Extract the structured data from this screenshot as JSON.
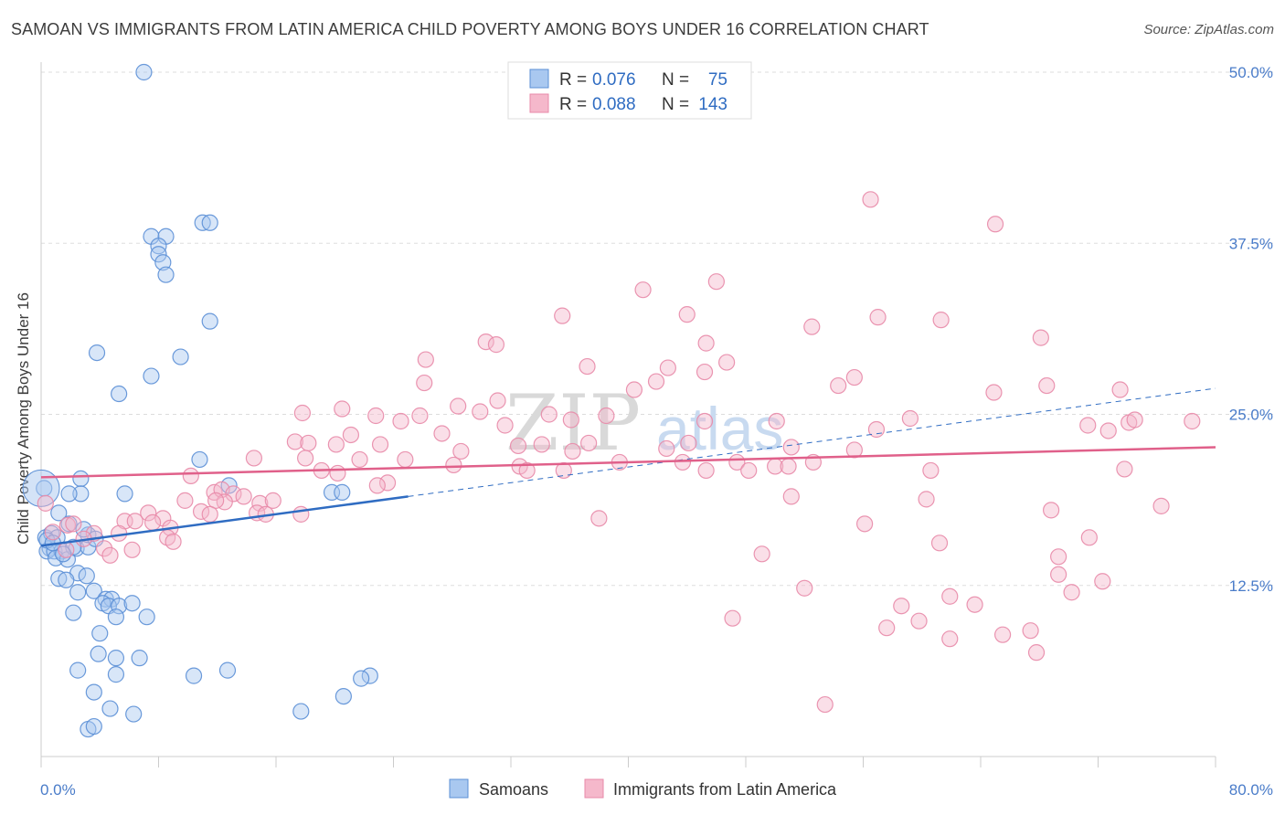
{
  "title": "SAMOAN VS IMMIGRANTS FROM LATIN AMERICA CHILD POVERTY AMONG BOYS UNDER 16 CORRELATION CHART",
  "source": "Source: ZipAtlas.com",
  "watermark": {
    "zip": "ZIP",
    "atlas": "atlas"
  },
  "colors": {
    "samoan_fill": "#a9c8f0",
    "samoan_stroke": "#5b8fd6",
    "samoan_line": "#2f6cc2",
    "latin_fill": "#f5b8cb",
    "latin_stroke": "#e88aa8",
    "latin_line": "#e0608a",
    "grid": "#dddddd",
    "tick_text": "#4a7cc9"
  },
  "legend": {
    "rows": [
      {
        "r_label": "R =",
        "r_value": "0.076",
        "n_label": "N =",
        "n_value": "75"
      },
      {
        "r_label": "R =",
        "r_value": "0.088",
        "n_label": "N =",
        "n_value": "143"
      }
    ]
  },
  "chart_data": {
    "type": "scatter",
    "ylabel": "Child Poverty Among Boys Under 16",
    "xlim": [
      0,
      80
    ],
    "ylim": [
      0,
      50
    ],
    "x_ticks": [
      "0.0%",
      "80.0%"
    ],
    "y_ticks": [
      {
        "value": 12.5,
        "label": "12.5%"
      },
      {
        "value": 25.0,
        "label": "25.0%"
      },
      {
        "value": 37.5,
        "label": "37.5%"
      },
      {
        "value": 50.0,
        "label": "50.0%"
      }
    ],
    "series": [
      {
        "name": "Samoans",
        "trend": {
          "x0": 0,
          "y0": 15.4,
          "x1": 25,
          "y1": 19.0,
          "dash_to_x": 80,
          "dash_to_y": 26.9
        },
        "points": [
          [
            7,
            50
          ],
          [
            7.5,
            38
          ],
          [
            8.5,
            38
          ],
          [
            8,
            37.3
          ],
          [
            8,
            36.7
          ],
          [
            8.3,
            36.1
          ],
          [
            8.5,
            35.2
          ],
          [
            11,
            39
          ],
          [
            11.5,
            39
          ],
          [
            11.5,
            31.8
          ],
          [
            3.8,
            29.5
          ],
          [
            7.5,
            27.8
          ],
          [
            9.5,
            29.2
          ],
          [
            5.3,
            26.5
          ],
          [
            10.8,
            21.7
          ],
          [
            12.8,
            19.8
          ],
          [
            2.7,
            20.3
          ],
          [
            2.7,
            19.2
          ],
          [
            1.9,
            19.2
          ],
          [
            5.7,
            19.2
          ],
          [
            19.8,
            19.3
          ],
          [
            20.5,
            19.3
          ],
          [
            1.2,
            17.8
          ],
          [
            1.9,
            17.0
          ],
          [
            0.6,
            15.2
          ],
          [
            0.4,
            15.0
          ],
          [
            0.9,
            15.0
          ],
          [
            1.4,
            15.0
          ],
          [
            2.4,
            15.2
          ],
          [
            3.2,
            15.3
          ],
          [
            1.0,
            14.5
          ],
          [
            1.8,
            14.4
          ],
          [
            2.5,
            13.4
          ],
          [
            3.1,
            13.2
          ],
          [
            1.2,
            13.0
          ],
          [
            1.7,
            12.9
          ],
          [
            2.5,
            12.0
          ],
          [
            3.6,
            12.1
          ],
          [
            4.4,
            11.5
          ],
          [
            4.8,
            11.5
          ],
          [
            4.2,
            11.2
          ],
          [
            4.6,
            11.0
          ],
          [
            5.3,
            11.0
          ],
          [
            6.2,
            11.2
          ],
          [
            2.2,
            10.5
          ],
          [
            5.1,
            10.2
          ],
          [
            7.2,
            10.2
          ],
          [
            4.0,
            9.0
          ],
          [
            3.9,
            7.5
          ],
          [
            5.1,
            7.2
          ],
          [
            6.7,
            7.2
          ],
          [
            2.5,
            6.3
          ],
          [
            5.1,
            6.0
          ],
          [
            10.4,
            5.9
          ],
          [
            12.7,
            6.3
          ],
          [
            22.4,
            5.9
          ],
          [
            21.8,
            5.7
          ],
          [
            3.6,
            4.7
          ],
          [
            4.7,
            3.5
          ],
          [
            6.3,
            3.1
          ],
          [
            17.7,
            3.3
          ],
          [
            20.6,
            4.4
          ],
          [
            3.2,
            2.0
          ],
          [
            3.6,
            2.2
          ],
          [
            0.2,
            19.6
          ],
          [
            0.3,
            16.0
          ],
          [
            0.7,
            16.3
          ],
          [
            1.1,
            16.0
          ],
          [
            0.4,
            15.8
          ],
          [
            3.2,
            16.2
          ],
          [
            2.2,
            15.3
          ],
          [
            1.5,
            14.8
          ],
          [
            0.8,
            15.6
          ],
          [
            2.9,
            16.6
          ],
          [
            3.7,
            15.9
          ]
        ]
      },
      {
        "name": "Immigrants from Latin America",
        "trend": {
          "x0": 0,
          "y0": 20.4,
          "x1": 80,
          "y1": 22.6
        },
        "points": [
          [
            56.5,
            40.7
          ],
          [
            65,
            38.9
          ],
          [
            46,
            34.7
          ],
          [
            41,
            34.1
          ],
          [
            35.5,
            32.2
          ],
          [
            44,
            32.3
          ],
          [
            52.5,
            31.4
          ],
          [
            57,
            32.1
          ],
          [
            61.3,
            31.9
          ],
          [
            68.1,
            30.6
          ],
          [
            30.3,
            30.3
          ],
          [
            31,
            30.1
          ],
          [
            45.3,
            30.2
          ],
          [
            26.2,
            29.0
          ],
          [
            46.7,
            28.8
          ],
          [
            37.2,
            28.5
          ],
          [
            42.7,
            28.4
          ],
          [
            45.2,
            28.1
          ],
          [
            55.4,
            27.7
          ],
          [
            41.9,
            27.4
          ],
          [
            26.1,
            27.3
          ],
          [
            54.3,
            27.1
          ],
          [
            40.4,
            26.8
          ],
          [
            64.9,
            26.6
          ],
          [
            68.5,
            27.1
          ],
          [
            73.5,
            26.8
          ],
          [
            31.1,
            26.0
          ],
          [
            28.4,
            25.6
          ],
          [
            29.9,
            25.2
          ],
          [
            17.8,
            25.1
          ],
          [
            25.8,
            24.9
          ],
          [
            20.5,
            25.4
          ],
          [
            22.8,
            24.9
          ],
          [
            24.5,
            24.5
          ],
          [
            34.6,
            25.0
          ],
          [
            38.5,
            24.9
          ],
          [
            36.1,
            24.6
          ],
          [
            31.6,
            24.2
          ],
          [
            45.2,
            24.5
          ],
          [
            50.1,
            24.5
          ],
          [
            59.2,
            24.7
          ],
          [
            71.3,
            24.2
          ],
          [
            74.1,
            24.4
          ],
          [
            74.5,
            24.6
          ],
          [
            78.4,
            24.5
          ],
          [
            72.7,
            23.8
          ],
          [
            56.9,
            23.9
          ],
          [
            27.3,
            23.6
          ],
          [
            21.1,
            23.5
          ],
          [
            17.3,
            23.0
          ],
          [
            20.1,
            22.8
          ],
          [
            23.1,
            22.8
          ],
          [
            18.2,
            22.9
          ],
          [
            32.5,
            22.7
          ],
          [
            34.1,
            22.8
          ],
          [
            37.3,
            22.9
          ],
          [
            44.1,
            22.9
          ],
          [
            51.1,
            22.6
          ],
          [
            55.4,
            22.4
          ],
          [
            36.2,
            22.3
          ],
          [
            42.6,
            22.5
          ],
          [
            28.6,
            22.3
          ],
          [
            14.5,
            21.8
          ],
          [
            18.0,
            21.8
          ],
          [
            21.7,
            21.7
          ],
          [
            24.8,
            21.7
          ],
          [
            39.4,
            21.5
          ],
          [
            43.7,
            21.5
          ],
          [
            47.4,
            21.5
          ],
          [
            50.0,
            21.2
          ],
          [
            50.9,
            21.2
          ],
          [
            52.6,
            21.5
          ],
          [
            28.1,
            21.3
          ],
          [
            32.6,
            21.2
          ],
          [
            33.1,
            20.9
          ],
          [
            35.6,
            20.9
          ],
          [
            45.3,
            20.9
          ],
          [
            48.2,
            20.9
          ],
          [
            60.6,
            20.9
          ],
          [
            73.8,
            21.0
          ],
          [
            19.1,
            20.9
          ],
          [
            20.2,
            20.7
          ],
          [
            23.6,
            20.0
          ],
          [
            22.9,
            19.8
          ],
          [
            10.2,
            20.5
          ],
          [
            11.8,
            19.3
          ],
          [
            12.3,
            19.5
          ],
          [
            13.1,
            19.2
          ],
          [
            13.8,
            19.0
          ],
          [
            12.5,
            18.6
          ],
          [
            9.8,
            18.7
          ],
          [
            11.9,
            18.7
          ],
          [
            14.9,
            18.5
          ],
          [
            15.8,
            18.7
          ],
          [
            14.7,
            17.8
          ],
          [
            10.9,
            17.9
          ],
          [
            11.5,
            17.7
          ],
          [
            7.3,
            17.8
          ],
          [
            8.3,
            17.4
          ],
          [
            5.7,
            17.2
          ],
          [
            15.3,
            17.7
          ],
          [
            17.7,
            17.7
          ],
          [
            51.1,
            19.0
          ],
          [
            60.3,
            18.8
          ],
          [
            76.3,
            18.3
          ],
          [
            68.8,
            18.0
          ],
          [
            38.0,
            17.4
          ],
          [
            56.1,
            17.0
          ],
          [
            71.4,
            16.0
          ],
          [
            8.8,
            16.7
          ],
          [
            8.6,
            16.0
          ],
          [
            7.6,
            17.1
          ],
          [
            6.4,
            17.2
          ],
          [
            5.3,
            16.3
          ],
          [
            3.6,
            16.3
          ],
          [
            1.8,
            16.9
          ],
          [
            2.9,
            15.9
          ],
          [
            4.3,
            15.2
          ],
          [
            6.2,
            15.1
          ],
          [
            9.0,
            15.7
          ],
          [
            1.7,
            15.1
          ],
          [
            4.7,
            14.7
          ],
          [
            61.2,
            15.6
          ],
          [
            49.1,
            14.8
          ],
          [
            0.3,
            18.5
          ],
          [
            2.2,
            17.0
          ],
          [
            0.8,
            16.4
          ],
          [
            69.3,
            13.3
          ],
          [
            69.3,
            14.6
          ],
          [
            72.3,
            12.8
          ],
          [
            52,
            12.3
          ],
          [
            61.9,
            11.7
          ],
          [
            70.2,
            12.0
          ],
          [
            58.6,
            11.0
          ],
          [
            63.6,
            11.1
          ],
          [
            47.1,
            10.1
          ],
          [
            57.6,
            9.4
          ],
          [
            59.8,
            9.9
          ],
          [
            61.9,
            8.6
          ],
          [
            65.5,
            8.9
          ],
          [
            67.4,
            9.2
          ],
          [
            67.8,
            7.6
          ],
          [
            53.4,
            3.8
          ]
        ]
      }
    ]
  },
  "bottom_legend": [
    {
      "label": "Samoans"
    },
    {
      "label": "Immigrants from Latin America"
    }
  ]
}
